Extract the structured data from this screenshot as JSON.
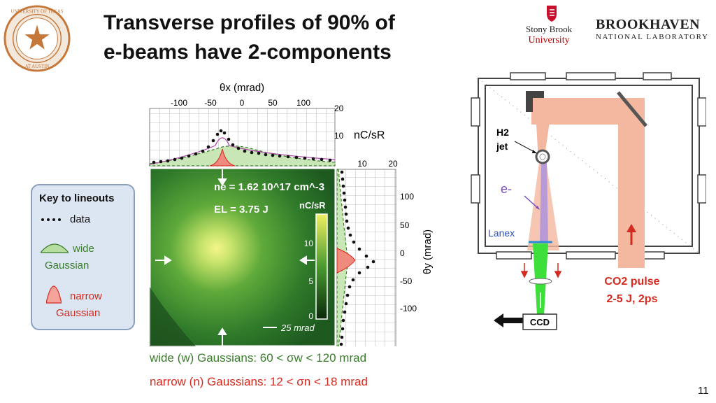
{
  "title": {
    "line1": "Transverse profiles of 90% of",
    "line2": "e-beams have 2-components"
  },
  "logos": {
    "ut": "THE UNIVERSITY OF TEXAS AT AUSTIN",
    "stony_brook_l1": "Stony Brook",
    "stony_brook_l2": "University",
    "bnl_l1": "BROOKHAVEN",
    "bnl_l2": "NATIONAL LABORATORY"
  },
  "key": {
    "title": "Key to lineouts",
    "data_label": "data",
    "wide_label_1": "wide",
    "wide_label_2": "Gaussian",
    "narrow_label_1": "narrow",
    "narrow_label_2": "Gaussian"
  },
  "plot": {
    "theta_x_label": "θx (mrad)",
    "theta_x_ticks": [
      "-100",
      "-50",
      "0",
      "50",
      "100"
    ],
    "top_y_ticks": [
      "20",
      "10"
    ],
    "top_unit": "nC/sR",
    "right_x_ticks": [
      "10",
      "20"
    ],
    "theta_y_label": "θy (mrad)",
    "theta_y_ticks": [
      "100",
      "50",
      "0",
      "-50",
      "-100"
    ],
    "ne_text": "ne = 1.62 10^17 cm^-3",
    "el_text": "EL = 3.75 J",
    "colorbar_label": "nC/sR",
    "colorbar_ticks": [
      "10",
      "5",
      "0"
    ],
    "scalebar": "25 mrad"
  },
  "captions": {
    "wide": "wide (w) Gaussians:  60 < σw < 120 mrad",
    "narrow": "narrow (n) Gaussians: 12 < σn < 18 mrad"
  },
  "diagram": {
    "h2_jet_1": "H2",
    "h2_jet_2": "jet",
    "electron": "e-",
    "lanex": "Lanex",
    "co2_1": "CO2 pulse",
    "co2_2": "2-5 J, 2ps",
    "ccd": "CCD"
  },
  "page_number": "11",
  "colors": {
    "green": "#3a7d2a",
    "red": "#d42a1f",
    "beam": "#f4b8a0"
  }
}
